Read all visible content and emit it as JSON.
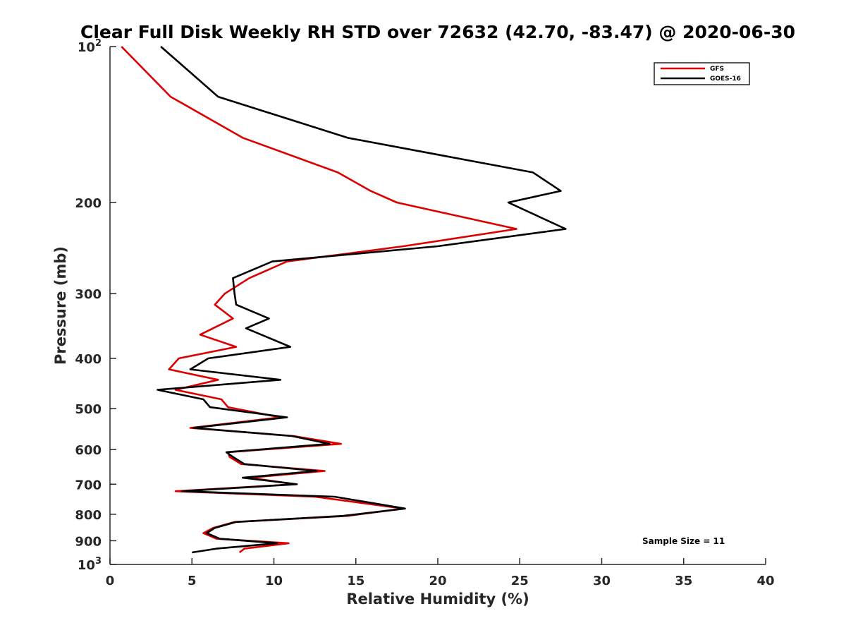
{
  "chart_data": {
    "type": "line",
    "title": "Clear Full Disk Weekly RH STD over 72632 (42.70, -83.47) @ 2020-06-30",
    "xlabel": "Relative Humidity (%)",
    "ylabel": "Pressure (mb)",
    "xlim": [
      0,
      40
    ],
    "ylim": [
      100,
      1000
    ],
    "y_scale": "log",
    "y_reversed": true,
    "grid": false,
    "legend_position": "top-right",
    "x_ticks": [
      {
        "value": 0,
        "label": "0"
      },
      {
        "value": 5,
        "label": "5"
      },
      {
        "value": 10,
        "label": "10"
      },
      {
        "value": 15,
        "label": "15"
      },
      {
        "value": 20,
        "label": "20"
      },
      {
        "value": 25,
        "label": "25"
      },
      {
        "value": 30,
        "label": "30"
      },
      {
        "value": 35,
        "label": "35"
      },
      {
        "value": 40,
        "label": "40"
      }
    ],
    "y_ticks": [
      {
        "value": 100,
        "base": "10",
        "exp": "2"
      },
      {
        "value": 200,
        "base": "200",
        "exp": ""
      },
      {
        "value": 300,
        "base": "300",
        "exp": ""
      },
      {
        "value": 400,
        "base": "400",
        "exp": ""
      },
      {
        "value": 500,
        "base": "500",
        "exp": ""
      },
      {
        "value": 600,
        "base": "600",
        "exp": ""
      },
      {
        "value": 700,
        "base": "700",
        "exp": ""
      },
      {
        "value": 800,
        "base": "800",
        "exp": ""
      },
      {
        "value": 900,
        "base": "900",
        "exp": ""
      },
      {
        "value": 1000,
        "base": "10",
        "exp": "3"
      }
    ],
    "annotation": "Sample Size = 11",
    "series": [
      {
        "name": "GFS",
        "color": "#dd0000",
        "points": [
          [
            0.7,
            100
          ],
          [
            3.7,
            125
          ],
          [
            8.1,
            150
          ],
          [
            13.9,
            175
          ],
          [
            15.9,
            190
          ],
          [
            17.5,
            200
          ],
          [
            24.8,
            225
          ],
          [
            17.9,
            243
          ],
          [
            10.8,
            260
          ],
          [
            8.5,
            280
          ],
          [
            7.0,
            300
          ],
          [
            6.4,
            315
          ],
          [
            7.5,
            335
          ],
          [
            5.5,
            360
          ],
          [
            7.7,
            380
          ],
          [
            4.2,
            400
          ],
          [
            3.6,
            420
          ],
          [
            6.6,
            440
          ],
          [
            4.0,
            460
          ],
          [
            6.8,
            480
          ],
          [
            7.2,
            497
          ],
          [
            10.4,
            520
          ],
          [
            4.9,
            545
          ],
          [
            11.2,
            565
          ],
          [
            14.1,
            585
          ],
          [
            7.2,
            607
          ],
          [
            7.3,
            620
          ],
          [
            8.0,
            640
          ],
          [
            13.1,
            660
          ],
          [
            8.5,
            680
          ],
          [
            11.3,
            700
          ],
          [
            4.0,
            722
          ],
          [
            12.5,
            740
          ],
          [
            17.9,
            780
          ],
          [
            14.5,
            806
          ],
          [
            7.6,
            828
          ],
          [
            6.3,
            850
          ],
          [
            5.7,
            870
          ],
          [
            6.5,
            892
          ],
          [
            10.9,
            910
          ],
          [
            8.2,
            932
          ],
          [
            7.9,
            948
          ]
        ]
      },
      {
        "name": "GOES-16",
        "color": "#000000",
        "points": [
          [
            3.1,
            100
          ],
          [
            6.6,
            125
          ],
          [
            14.5,
            150
          ],
          [
            25.8,
            175
          ],
          [
            27.5,
            190
          ],
          [
            24.3,
            200
          ],
          [
            27.8,
            225
          ],
          [
            20.0,
            243
          ],
          [
            9.9,
            260
          ],
          [
            7.5,
            280
          ],
          [
            7.6,
            300
          ],
          [
            7.7,
            315
          ],
          [
            9.7,
            335
          ],
          [
            8.3,
            350
          ],
          [
            11.0,
            380
          ],
          [
            6.0,
            400
          ],
          [
            4.9,
            420
          ],
          [
            10.4,
            440
          ],
          [
            2.9,
            460
          ],
          [
            5.7,
            480
          ],
          [
            6.1,
            497
          ],
          [
            10.8,
            520
          ],
          [
            5.1,
            545
          ],
          [
            11.1,
            565
          ],
          [
            13.4,
            585
          ],
          [
            7.1,
            607
          ],
          [
            7.5,
            620
          ],
          [
            8.2,
            640
          ],
          [
            12.6,
            660
          ],
          [
            8.1,
            680
          ],
          [
            11.4,
            700
          ],
          [
            4.4,
            722
          ],
          [
            13.7,
            740
          ],
          [
            18.0,
            780
          ],
          [
            14.2,
            806
          ],
          [
            7.7,
            828
          ],
          [
            6.4,
            850
          ],
          [
            5.9,
            870
          ],
          [
            6.7,
            892
          ],
          [
            10.2,
            910
          ],
          [
            6.5,
            932
          ],
          [
            5.0,
            948
          ]
        ]
      }
    ]
  }
}
